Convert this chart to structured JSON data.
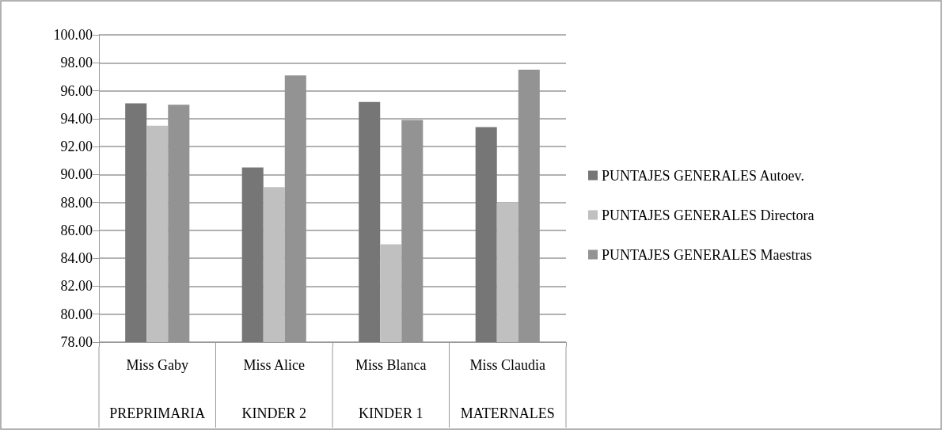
{
  "chart_data": {
    "type": "bar",
    "categories": [
      "Miss Gaby",
      "Miss Alice",
      "Miss Blanca",
      "Miss Claudia"
    ],
    "series": [
      {
        "name": "PUNTAJES GENERALES Autoev.",
        "color": "#767676",
        "values": [
          95.1,
          90.5,
          95.2,
          93.4
        ]
      },
      {
        "name": "PUNTAJES GENERALES Directora",
        "color": "#c0c0c0",
        "values": [
          93.5,
          89.1,
          85.0,
          88.0
        ]
      },
      {
        "name": "PUNTAJES GENERALES Maestras",
        "color": "#939393",
        "values": [
          95.0,
          97.1,
          93.9,
          97.5
        ]
      }
    ],
    "annotations": [
      "PREPRIMARIA",
      "KINDER 2",
      "KINDER 1",
      "MATERNALES"
    ],
    "ylim": [
      78,
      100
    ],
    "yticks": [
      {
        "value": 78,
        "label": "78.00"
      },
      {
        "value": 80,
        "label": "80.00"
      },
      {
        "value": 82,
        "label": "82.00"
      },
      {
        "value": 84,
        "label": "84.00"
      },
      {
        "value": 86,
        "label": "86.00"
      },
      {
        "value": 88,
        "label": "88.00"
      },
      {
        "value": 90,
        "label": "90.00"
      },
      {
        "value": 92,
        "label": "92.00"
      },
      {
        "value": 94,
        "label": "94.00"
      },
      {
        "value": 96,
        "label": "96.00"
      },
      {
        "value": 98,
        "label": "98.00"
      },
      {
        "value": 100,
        "label": "100.00"
      }
    ],
    "grid": "y",
    "legend": "right"
  }
}
